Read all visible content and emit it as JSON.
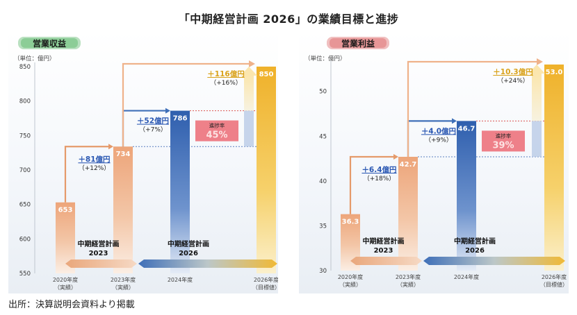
{
  "page": {
    "title": "「中期経営計画 2026」の業績目標と進捗",
    "source": "出所：決算説明会資料より掲載"
  },
  "colors": {
    "actual_bar": "#e9a77c",
    "progress_bar": "#3f6fb8",
    "target_bar": "#f0b935",
    "increase_text": "#2b58b3",
    "progress_box": "#ec6b74",
    "revenue_label_glow": "#38a84a",
    "profit_label_glow": "#d84a4a"
  },
  "chart_data": [
    {
      "type": "bar",
      "title": "営業収益",
      "unit_label": "（単位：億円）",
      "ylim": [
        550,
        850
      ],
      "yticks": [
        550,
        600,
        650,
        700,
        750,
        800,
        850
      ],
      "categories": [
        {
          "name": "2020年度",
          "sub": "（実績）"
        },
        {
          "name": "2023年度",
          "sub": "（実績）"
        },
        {
          "name": "2024年度",
          "sub": ""
        },
        {
          "name": "2026年度",
          "sub": "（目標値）"
        }
      ],
      "values": [
        653,
        734,
        786,
        850
      ],
      "value_labels": [
        "653",
        "734",
        "786",
        "850"
      ],
      "increments": [
        {
          "from": 0,
          "to": 1,
          "label": "＋81億円",
          "pct": "（+12%）"
        },
        {
          "from": 1,
          "to": 2,
          "label": "＋52億円",
          "pct": "（+7%）"
        },
        {
          "from": 1,
          "to": 3,
          "label": "＋116億円",
          "pct": "（+16%）"
        }
      ],
      "progress": {
        "label": "進捗率",
        "value": "45%"
      },
      "plans": [
        {
          "title": "中期経営計画",
          "year": "2023"
        },
        {
          "title": "中期経営計画",
          "year": "2026"
        }
      ]
    },
    {
      "type": "bar",
      "title": "営業利益",
      "unit_label": "（単位：億円）",
      "ylim": [
        30,
        53
      ],
      "yticks": [
        30,
        35,
        40,
        45,
        50
      ],
      "categories": [
        {
          "name": "2020年度",
          "sub": "（実績）"
        },
        {
          "name": "2023年度",
          "sub": "（実績）"
        },
        {
          "name": "2024年度",
          "sub": ""
        },
        {
          "name": "2026年度",
          "sub": "（目標値）"
        }
      ],
      "values": [
        36.3,
        42.7,
        46.7,
        53.0
      ],
      "value_labels": [
        "36.3",
        "42.7",
        "46.7",
        "53.0"
      ],
      "increments": [
        {
          "from": 0,
          "to": 1,
          "label": "＋6.4億円",
          "pct": "（+18%）"
        },
        {
          "from": 1,
          "to": 2,
          "label": "＋4.0億円",
          "pct": "（+9%）"
        },
        {
          "from": 1,
          "to": 3,
          "label": "＋10.3億円",
          "pct": "（+24%）"
        }
      ],
      "progress": {
        "label": "進捗率",
        "value": "39%"
      },
      "plans": [
        {
          "title": "中期経営計画",
          "year": "2023"
        },
        {
          "title": "中期経営計画",
          "year": "2026"
        }
      ]
    }
  ]
}
